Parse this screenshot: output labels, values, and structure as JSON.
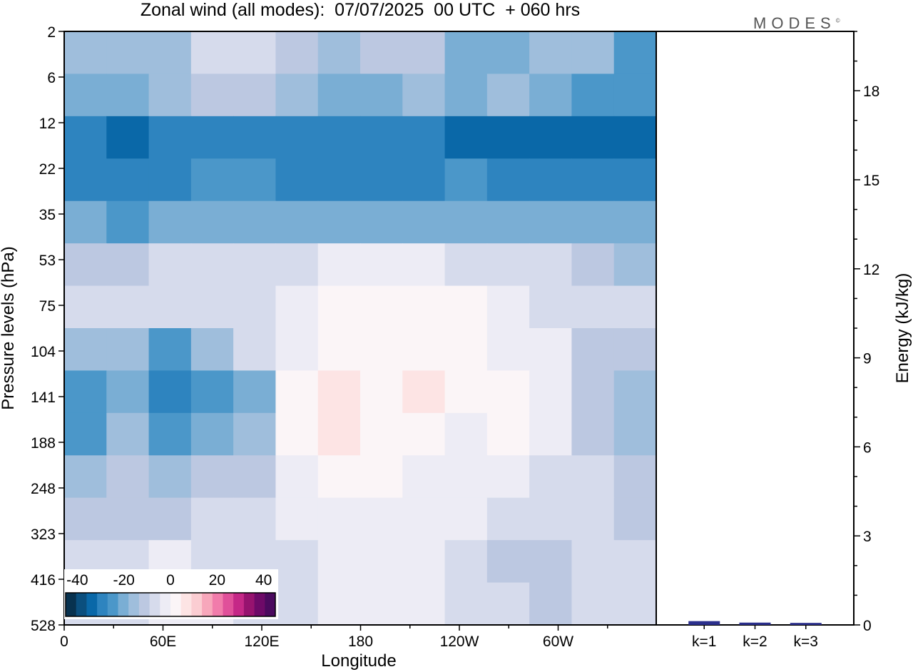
{
  "logo": "MODES",
  "logo_mark": "©",
  "chart_data": [
    {
      "type": "heatmap",
      "title": "Zonal wind (all modes):  07/07/2025  00 UTC  + 060 hrs",
      "xlabel": "Longitude",
      "ylabel": "Pressure levels (hPa)",
      "x_ticks": [
        "0",
        "60E",
        "120E",
        "180",
        "120W",
        "60W"
      ],
      "y_ticks": [
        "2",
        "6",
        "12",
        "22",
        "35",
        "53",
        "75",
        "104",
        "141",
        "188",
        "248",
        "323",
        "416",
        "528"
      ],
      "colorbar": {
        "ticks": [
          "-40",
          "-20",
          "0",
          "20",
          "40"
        ],
        "range": [
          -45,
          45
        ],
        "step": 5,
        "colors": [
          "#08324f",
          "#0b4f7e",
          "#0a68a8",
          "#2e84bf",
          "#4b97c9",
          "#7aaed4",
          "#9fbedc",
          "#bcc8e1",
          "#d6dbec",
          "#edecf5",
          "#fbf5f7",
          "#fde4e4",
          "#fbcdd2",
          "#f7a7bb",
          "#f17cab",
          "#e0509a",
          "#c52887",
          "#97136f",
          "#6e0a68",
          "#4b0a5e"
        ]
      },
      "bands": [
        {
          "level": "2",
          "u": [
            -15,
            -15,
            -12,
            -5,
            -5,
            -10,
            -15,
            -10,
            -10,
            -20,
            -20,
            -15,
            -15,
            -25
          ]
        },
        {
          "level": "6",
          "u": [
            -18,
            -18,
            -15,
            -10,
            -8,
            -12,
            -18,
            -18,
            -15,
            -18,
            -15,
            -18,
            -22,
            -22
          ]
        },
        {
          "level": "12",
          "u": [
            -30,
            -33,
            -30,
            -28,
            -27,
            -28,
            -28,
            -30,
            -30,
            -32,
            -33,
            -33,
            -33,
            -33
          ]
        },
        {
          "level": "22",
          "u": [
            -28,
            -30,
            -28,
            -25,
            -25,
            -27,
            -28,
            -28,
            -27,
            -25,
            -28,
            -28,
            -30,
            -28
          ]
        },
        {
          "level": "35",
          "u": [
            -20,
            -22,
            -20,
            -18,
            -18,
            -18,
            -20,
            -18,
            -20,
            -20,
            -18,
            -20,
            -20,
            -20
          ]
        },
        {
          "level": "53",
          "u": [
            -8,
            -10,
            -5,
            -3,
            -3,
            -3,
            1,
            1,
            1,
            -1,
            -2,
            -5,
            -10,
            -12
          ]
        },
        {
          "level": "75",
          "u": [
            -3,
            -5,
            -5,
            -3,
            -3,
            3,
            6,
            6,
            8,
            5,
            3,
            -3,
            -5,
            -5
          ]
        },
        {
          "level": "104",
          "u": [
            -12,
            -15,
            -22,
            -15,
            -5,
            3,
            8,
            7,
            6,
            6,
            4,
            3,
            -8,
            -10
          ]
        },
        {
          "level": "141",
          "u": [
            -25,
            -18,
            -30,
            -25,
            -18,
            5,
            12,
            6,
            10,
            5,
            6,
            3,
            -10,
            -15
          ]
        },
        {
          "level": "188",
          "u": [
            -22,
            -15,
            -25,
            -20,
            -12,
            5,
            10,
            6,
            5,
            3,
            5,
            3,
            -8,
            -12
          ]
        },
        {
          "level": "248",
          "u": [
            -12,
            -10,
            -15,
            -10,
            -8,
            3,
            7,
            5,
            4,
            3,
            2,
            -3,
            -5,
            -8
          ]
        },
        {
          "level": "323",
          "u": [
            -8,
            -7,
            -8,
            -5,
            -3,
            1,
            4,
            3,
            3,
            1,
            -1,
            -3,
            -5,
            -7
          ]
        },
        {
          "level": "416",
          "u": [
            -5,
            -3,
            1,
            -1,
            -1,
            -2,
            1,
            2,
            2,
            -3,
            -6,
            -7,
            -5,
            -5
          ]
        },
        {
          "level": "528",
          "u": [
            -3,
            -2,
            2,
            1,
            -1,
            -3,
            1,
            1,
            1,
            -3,
            -5,
            -6,
            -5,
            -5
          ]
        }
      ]
    },
    {
      "type": "bar",
      "ylabel": "Energy (kJ/kg)",
      "ylim": [
        0,
        20
      ],
      "y_ticks": [
        "0",
        "3",
        "6",
        "9",
        "12",
        "15",
        "18"
      ],
      "categories": [
        "k=1",
        "k=2",
        "k=3"
      ],
      "values": [
        0.08,
        0.03,
        0.02
      ],
      "bar_color": "#2b2f8c"
    }
  ]
}
